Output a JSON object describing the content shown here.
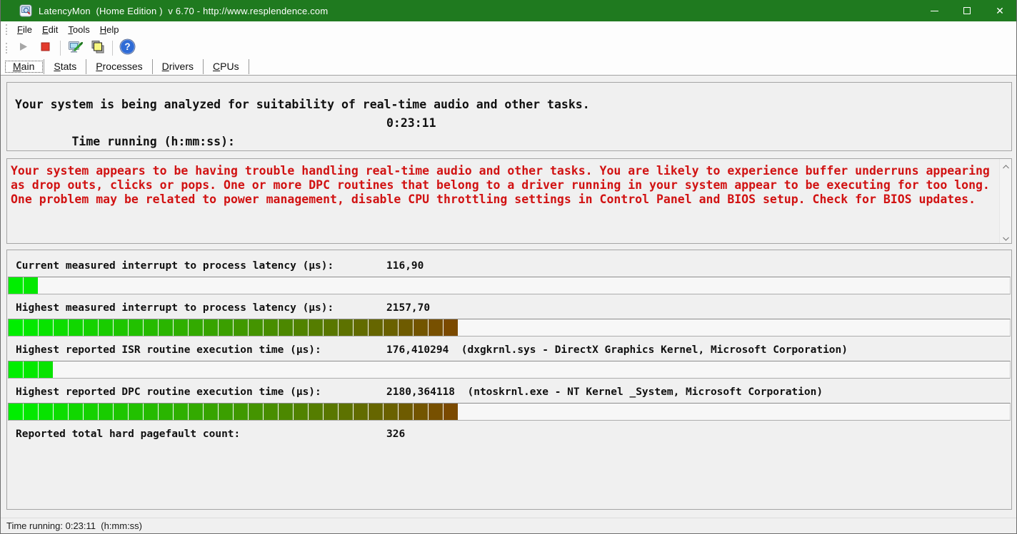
{
  "window": {
    "title": "LatencyMon  (Home Edition )  v 6.70 - http://www.resplendence.com",
    "titlebar_color": "#1f7a1f"
  },
  "menu": {
    "items": [
      "File",
      "Edit",
      "Tools",
      "Help"
    ]
  },
  "toolbar": {
    "icons": [
      "play-icon",
      "stop-icon",
      "analyzer-tools-icon",
      "copy-report-icon",
      "help-icon"
    ]
  },
  "tabs": {
    "items": [
      "Main",
      "Stats",
      "Processes",
      "Drivers",
      "CPUs"
    ],
    "active": "Main"
  },
  "analysis": {
    "status_line": "Your system is being analyzed for suitability of real-time audio and other tasks.",
    "time_label": "Time running (h:mm:ss):",
    "time_value": "0:23:11"
  },
  "warning": {
    "text_color": "#d11212",
    "lines": [
      "Your system appears to be having trouble handling real-time audio and other tasks. You are likely to experience buffer underruns appearing",
      "as drop outs, clicks or pops. One or more DPC routines that belong to a driver running in your system appear to be executing for too long.",
      "One problem may be related to power management, disable CPU throttling settings in Control Panel and BIOS setup. Check for BIOS updates."
    ]
  },
  "measurements": {
    "full_scale_segments": 30,
    "bar_colors": {
      "start": "#00ee00",
      "end": "#7b4a00"
    },
    "rows": [
      {
        "label": "Current measured interrupt to process latency (µs):",
        "value": "116,90",
        "extra": "",
        "segments": 2
      },
      {
        "label": "Highest measured interrupt to process latency (µs):",
        "value": "2157,70",
        "extra": "",
        "segments": 30
      },
      {
        "label": "Highest reported ISR routine execution time (µs):",
        "value": "176,410294",
        "extra": "(dxgkrnl.sys - DirectX Graphics Kernel, Microsoft Corporation)",
        "segments": 3
      },
      {
        "label": "Highest reported DPC routine execution time (µs):",
        "value": "2180,364118",
        "extra": "(ntoskrnl.exe - NT Kernel _System, Microsoft Corporation)",
        "segments": 30
      },
      {
        "label": "Reported total hard pagefault count:",
        "value": "326",
        "extra": "",
        "segments": 0
      }
    ]
  },
  "statusbar": {
    "text": "Time running: 0:23:11  (h:mm:ss)"
  }
}
